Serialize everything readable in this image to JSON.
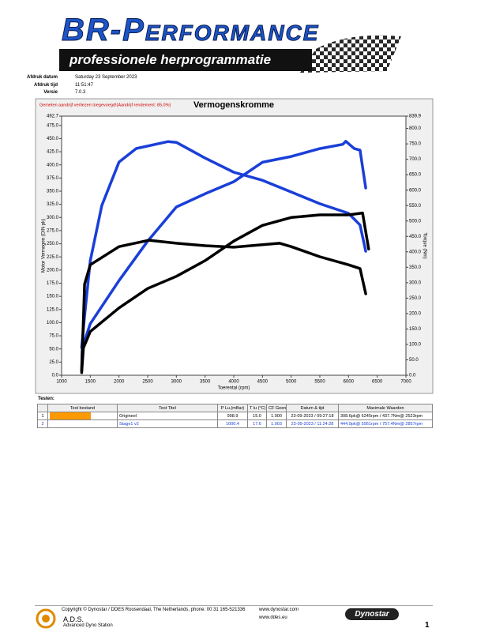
{
  "header": {
    "title": "BR-Performance",
    "subtitle": "professionele herprogrammatie"
  },
  "meta": [
    {
      "label": "Afdruk datum",
      "value": "Saturday 23 September 2023"
    },
    {
      "label": "Afdruk tijd",
      "value": "11:51:47"
    },
    {
      "label": "Versie",
      "value": "7.0.3"
    }
  ],
  "chart_data": {
    "type": "line",
    "title": "Vermogenskromme",
    "annotation": "Gemeten aandrijf verliezen toegevoegd!(Aandrijf rendement: 85.0%)",
    "x_label": "Toerental (rpm)",
    "y_label": "Motor Vermogen (DIN pk)",
    "y2_label": "Torque (Nm)",
    "xlim": [
      1000,
      7000
    ],
    "xticks": [
      1000,
      1500,
      2000,
      2500,
      3000,
      3500,
      4000,
      4500,
      5000,
      5500,
      6000,
      6500,
      7000
    ],
    "ylim": [
      0,
      492.7
    ],
    "yticks": [
      {
        "value": 0,
        "label": "0.0"
      },
      {
        "value": 25,
        "label": "25.0"
      },
      {
        "value": 50,
        "label": "50.0"
      },
      {
        "value": 75,
        "label": "75.0"
      },
      {
        "value": 100,
        "label": "100.0"
      },
      {
        "value": 125,
        "label": "125.0"
      },
      {
        "value": 150,
        "label": "150.0"
      },
      {
        "value": 175,
        "label": "175.0"
      },
      {
        "value": 200,
        "label": "200.0"
      },
      {
        "value": 225,
        "label": "225.0"
      },
      {
        "value": 250,
        "label": "250.0"
      },
      {
        "value": 275,
        "label": "275.0"
      },
      {
        "value": 300,
        "label": "300.0"
      },
      {
        "value": 325,
        "label": "325.0"
      },
      {
        "value": 350,
        "label": "350.0"
      },
      {
        "value": 375,
        "label": "375.0"
      },
      {
        "value": 400,
        "label": "400.0"
      },
      {
        "value": 425,
        "label": "425.0"
      },
      {
        "value": 450,
        "label": "450.0"
      },
      {
        "value": 475,
        "label": "475.0"
      },
      492.7
    ],
    "y2lim": [
      0,
      839.9
    ],
    "y2ticks": [
      {
        "value": 0,
        "label": "0.0"
      },
      {
        "value": 50,
        "label": "50.0"
      },
      {
        "value": 100,
        "label": "100.0"
      },
      {
        "value": 150,
        "label": "150.0"
      },
      {
        "value": 200,
        "label": "200.0"
      },
      {
        "value": 250,
        "label": "250.0"
      },
      {
        "value": 300,
        "label": "300.0"
      },
      {
        "value": 350,
        "label": "350.0"
      },
      {
        "value": 400,
        "label": "400.0"
      },
      {
        "value": 450,
        "label": "450.0"
      },
      {
        "value": 500,
        "label": "500.0"
      },
      {
        "value": 550,
        "label": "550.0"
      },
      {
        "value": 600,
        "label": "600.0"
      },
      {
        "value": 650,
        "label": "650.0"
      },
      {
        "value": 700,
        "label": "700.0"
      },
      {
        "value": 750,
        "label": "750.0"
      },
      {
        "value": 800,
        "label": "800.0"
      },
      839.9
    ],
    "series": [
      {
        "color": "#1a3fd8",
        "x": [
          1350,
          1360,
          1500,
          2000,
          2500,
          3000,
          3500,
          4000,
          4500,
          5000,
          5500,
          5900,
          5951,
          6100,
          6200,
          6300
        ],
        "values": [
          10,
          52,
          98,
          180,
          255,
          320,
          345,
          368,
          405,
          416,
          431,
          439,
          444.9,
          431,
          428,
          356
        ]
      },
      {
        "color": "#1a3fd8",
        "axis": "y2",
        "x": [
          1350,
          1400,
          1500,
          1700,
          2000,
          2300,
          2857,
          3000,
          3500,
          4000,
          4500,
          5000,
          5500,
          6000,
          6200,
          6300
        ],
        "values": [
          90,
          192,
          371,
          550,
          691,
          735,
          757.4,
          755,
          704,
          658,
          632,
          594,
          556,
          525,
          487,
          402
        ]
      },
      {
        "color": "#000000",
        "x": [
          1350,
          1380,
          1500,
          2000,
          2500,
          3000,
          3500,
          4000,
          4500,
          5000,
          5500,
          6000,
          6245,
          6350
        ],
        "values": [
          5,
          52,
          83,
          128,
          165,
          188,
          218,
          255,
          285,
          300,
          305,
          305,
          308.6,
          240
        ]
      },
      {
        "color": "#000000",
        "axis": "y2",
        "x": [
          1350,
          1400,
          1500,
          2000,
          2523,
          3000,
          3500,
          4000,
          4500,
          4800,
          5000,
          5500,
          6000,
          6200,
          6300
        ],
        "values": [
          13,
          295,
          358,
          417,
          437.7,
          428,
          420,
          415,
          423,
          428,
          417,
          384,
          358,
          346,
          264
        ]
      }
    ]
  },
  "table": {
    "label": "Testen:",
    "columns": [
      "Test bestand",
      "Test Titel",
      "P Lu.(mBar)",
      "T lu (°C)",
      "CF Geen",
      "Datum & tijd",
      "Maximale Waarden"
    ],
    "rows": [
      [
        "1",
        "Origineel",
        "998.9",
        "15.0",
        "1.000",
        "23-09-2023 / 09:27:18",
        "308.6pk@ 6245rpm / 437.7Nm@ 2523rpm"
      ],
      [
        "2",
        "Stage1 v2",
        "1000.4",
        "17.6",
        "1.003",
        "23-09-2023 / 11:24:28",
        "444.9pk@ 5951rpm / 757.4Nm@ 2857rpm"
      ]
    ]
  },
  "footer": {
    "copyright": "Copyright © Dynostar / DDES Roosendaal, The Netherlands, phone: 00 31 165-521336",
    "web1": "www.dynostar.com",
    "web2": "www.ddes.eu",
    "ads": "A.D.S.",
    "ads_sub": "Advanced Dyno Station",
    "brand": "Dynostar",
    "page": "1"
  }
}
